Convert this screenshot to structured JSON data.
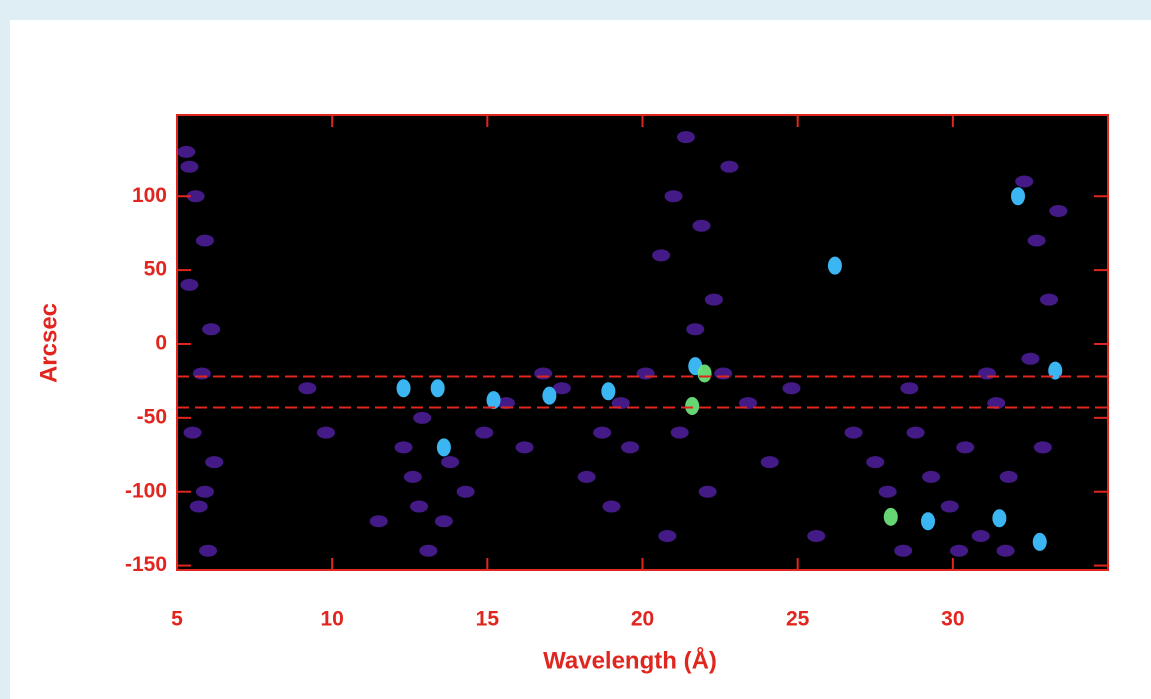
{
  "chart_data": {
    "type": "scatter",
    "x_label": "Wavelength (Å)",
    "y_label": "Arcsec",
    "xlim": [
      5,
      35
    ],
    "ylim": [
      -153,
      155
    ],
    "xticks": [
      5,
      10,
      15,
      20,
      25,
      30
    ],
    "yticks": [
      100,
      50,
      0,
      -50,
      -100,
      -150
    ],
    "hlines": [
      -22,
      -43
    ],
    "hline_color": "#e0261f",
    "axis_color": "#e0261f",
    "background": "#000000",
    "series": [
      {
        "color": "#5522a8",
        "x": [
          5.3,
          5.6,
          5.9,
          5.4,
          6.1,
          5.8,
          5.5,
          6.2,
          5.7,
          6.0,
          5.4,
          5.9,
          9.2,
          9.8,
          11.5,
          12.3,
          12.8,
          13.1,
          12.6,
          13.6,
          12.9,
          13.8,
          14.3,
          14.9,
          15.6,
          16.2,
          16.8,
          17.4,
          18.2,
          18.7,
          19.3,
          19.0,
          19.6,
          20.1,
          20.6,
          21.0,
          21.4,
          21.9,
          22.3,
          22.8,
          21.2,
          22.1,
          20.8,
          22.6,
          21.7,
          23.4,
          24.1,
          24.8,
          25.6,
          26.8,
          27.5,
          27.9,
          28.4,
          28.8,
          29.3,
          29.9,
          30.4,
          30.9,
          31.4,
          31.8,
          32.3,
          32.7,
          33.1,
          32.5,
          32.9,
          31.7,
          33.4,
          28.6,
          30.2,
          31.1
        ],
        "values": [
          130,
          100,
          70,
          40,
          10,
          -20,
          -60,
          -80,
          -110,
          -140,
          120,
          -100,
          -30,
          -60,
          -120,
          -70,
          -110,
          -140,
          -90,
          -120,
          -50,
          -80,
          -100,
          -60,
          -40,
          -70,
          -20,
          -30,
          -90,
          -60,
          -40,
          -110,
          -70,
          -20,
          60,
          100,
          140,
          80,
          30,
          120,
          -60,
          -100,
          -130,
          -20,
          10,
          -40,
          -80,
          -30,
          -130,
          -60,
          -80,
          -100,
          -140,
          -60,
          -90,
          -110,
          -70,
          -130,
          -40,
          -90,
          110,
          70,
          30,
          -10,
          -70,
          -140,
          90,
          -30,
          -140,
          -20
        ]
      },
      {
        "color": "#3fc0ff",
        "x": [
          12.3,
          13.4,
          15.2,
          17.0,
          18.9,
          21.7,
          26.2,
          29.2,
          31.5,
          32.8,
          33.3,
          32.1,
          13.6
        ],
        "values": [
          -30,
          -30,
          -38,
          -35,
          -32,
          -15,
          53,
          -120,
          -118,
          -134,
          -18,
          100,
          -70
        ]
      },
      {
        "color": "#6be27a",
        "x": [
          21.6,
          22.0,
          28.0
        ],
        "values": [
          -42,
          -20,
          -117
        ]
      }
    ]
  }
}
